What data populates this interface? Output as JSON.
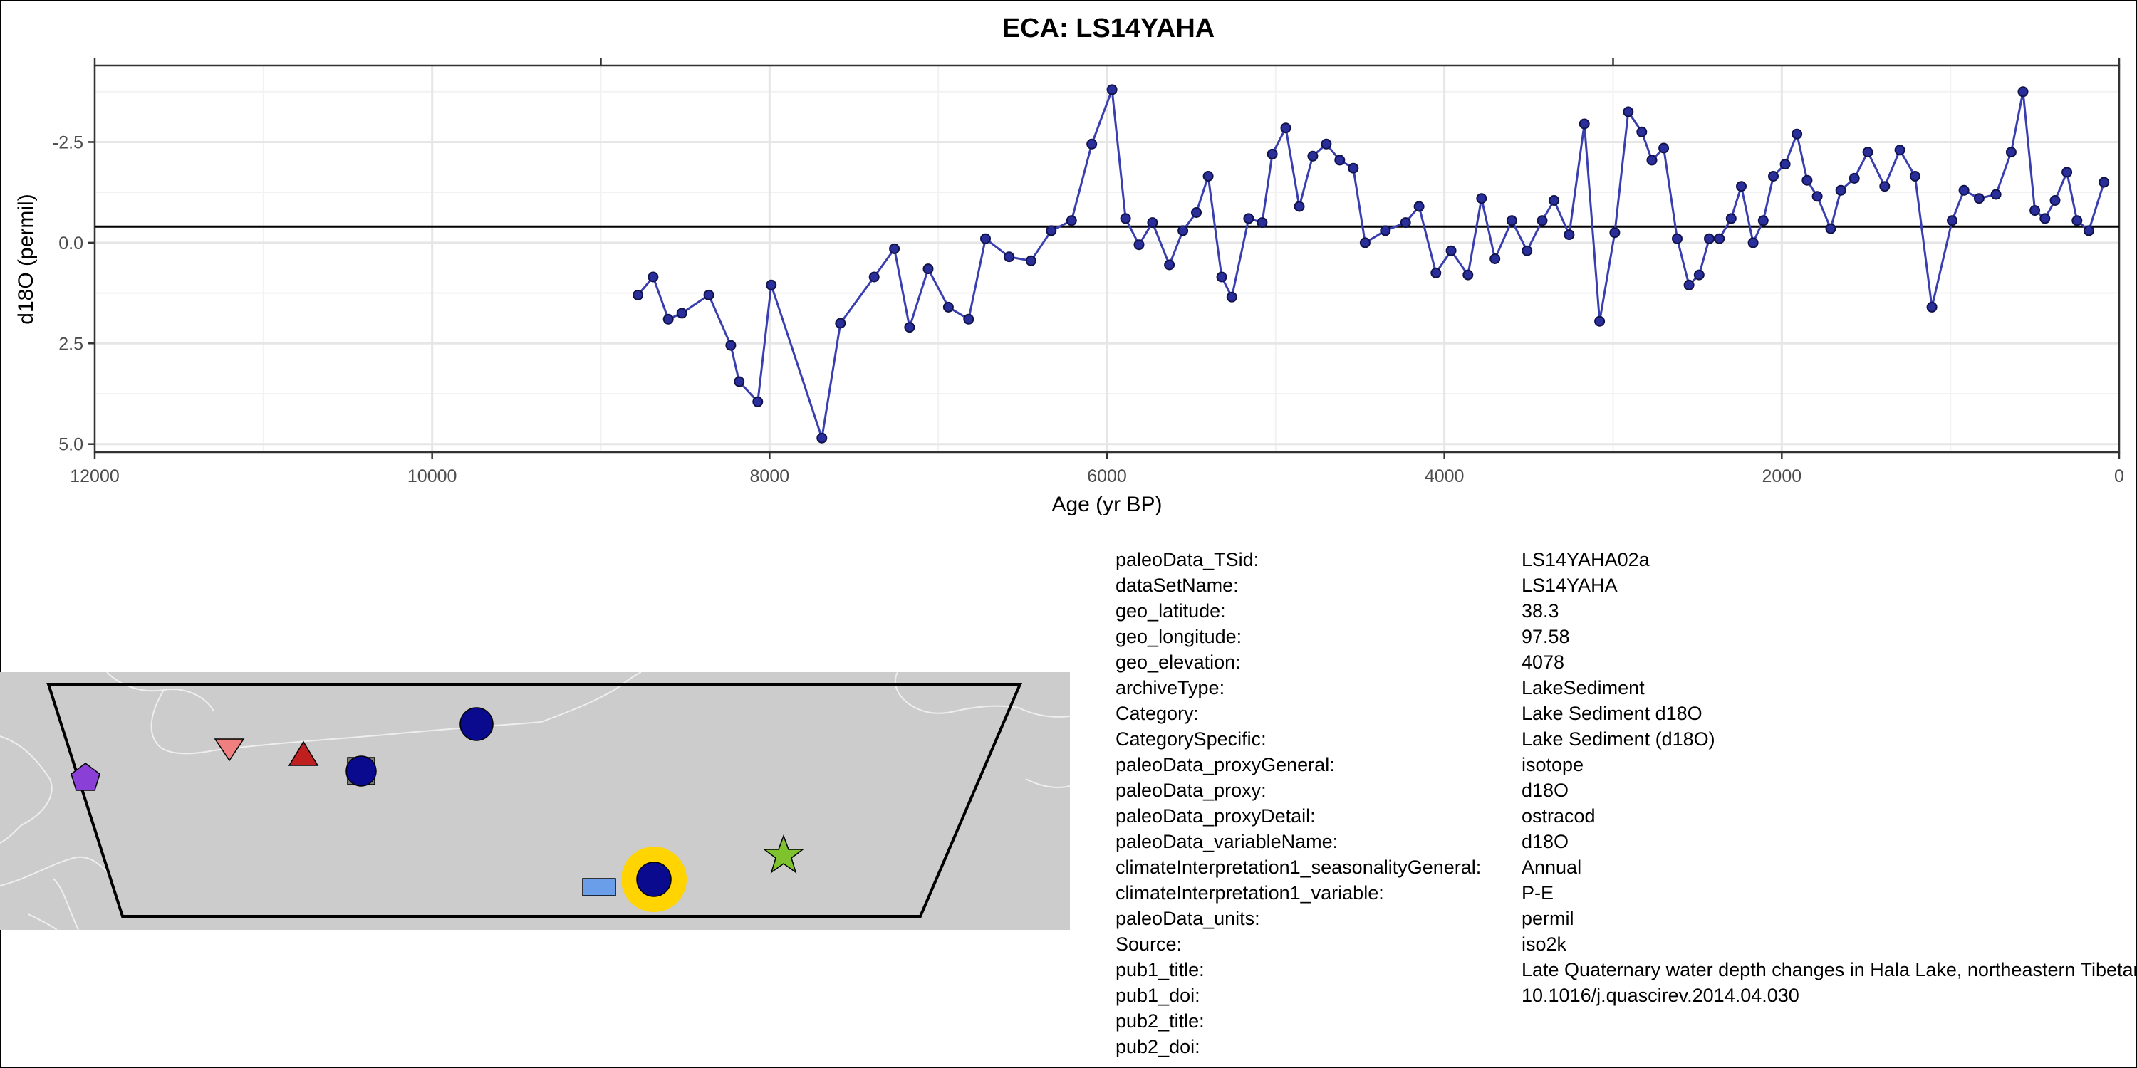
{
  "chart_data": {
    "type": "line",
    "title": "ECA: LS14YAHA",
    "xlabel": "Age (yr BP)",
    "ylabel": "d18O (permil)",
    "xlim": [
      12000,
      0
    ],
    "ylim": [
      5.2,
      -4.4
    ],
    "x_reversed": true,
    "y_reversed": true,
    "grid": true,
    "legend": "none",
    "x_ticks": [
      12000,
      10000,
      8000,
      6000,
      4000,
      2000,
      0
    ],
    "x_tick_labels": [
      "12000",
      "10000",
      "8000",
      "6000",
      "4000",
      "2000",
      "0"
    ],
    "y_ticks": [
      -2.5,
      0.0,
      2.5,
      5.0
    ],
    "y_tick_labels": [
      "-2.5",
      "0.0",
      "2.5",
      "5.0"
    ],
    "top_axis_ticks": [
      12000,
      9000,
      3000,
      0
    ],
    "reference_line_y": -0.4,
    "colors": {
      "line": "#3a3fb0",
      "point_fill": "#2a2e9a",
      "point_stroke": "#10124a"
    },
    "series": [
      {
        "x": [
          8780,
          8690,
          8600,
          8520,
          8360,
          8230,
          8180,
          8070,
          7990,
          7690,
          7580,
          7380,
          7260,
          7170,
          7060,
          6940,
          6820,
          6720,
          6580,
          6450,
          6330,
          6210,
          6090,
          5970,
          5890,
          5810,
          5730,
          5630,
          5550,
          5470,
          5400,
          5320,
          5260,
          5160,
          5080,
          5020,
          4940,
          4860,
          4780,
          4700,
          4620,
          4540,
          4470,
          4350,
          4230,
          4150,
          4050,
          3960,
          3860,
          3780,
          3700,
          3600,
          3510,
          3420,
          3350,
          3260,
          3170,
          3080,
          2990,
          2910,
          2830,
          2770,
          2700,
          2620,
          2550,
          2490,
          2430,
          2370,
          2300,
          2240,
          2170,
          2110,
          2050,
          1980,
          1910,
          1850,
          1790,
          1710,
          1650,
          1570,
          1490,
          1390,
          1300,
          1210,
          1110,
          990,
          920,
          830,
          730,
          640,
          570,
          500,
          440,
          380,
          310,
          250,
          180,
          90
        ],
        "y": [
          1.3,
          0.85,
          1.9,
          1.75,
          1.3,
          2.55,
          3.45,
          3.95,
          1.05,
          4.85,
          2.0,
          0.85,
          0.15,
          2.1,
          0.65,
          1.6,
          1.9,
          -0.1,
          0.35,
          0.45,
          -0.3,
          -0.55,
          -2.45,
          -3.8,
          -0.6,
          0.05,
          -0.5,
          0.55,
          -0.3,
          -0.75,
          -1.65,
          0.85,
          1.35,
          -0.6,
          -0.5,
          -2.2,
          -2.85,
          -0.9,
          -2.15,
          -2.45,
          -2.05,
          -1.85,
          0.0,
          -0.3,
          -0.5,
          -0.9,
          0.75,
          0.2,
          0.8,
          -1.1,
          0.4,
          -0.55,
          0.2,
          -0.55,
          -1.05,
          -0.2,
          -2.95,
          1.95,
          -0.25,
          -3.25,
          -2.75,
          -2.05,
          -2.35,
          -0.1,
          1.05,
          0.8,
          -0.1,
          -0.1,
          -0.6,
          -1.4,
          0.0,
          -0.55,
          -1.65,
          -1.95,
          -2.7,
          -1.55,
          -1.15,
          -0.35,
          -1.3,
          -1.6,
          -2.25,
          -1.4,
          -2.3,
          -1.65,
          1.6,
          -0.55,
          -1.3,
          -1.1,
          -1.2,
          -2.25,
          -3.75,
          -0.8,
          -0.6,
          -1.05,
          -1.75,
          -0.55,
          -0.3,
          -1.5
        ]
      }
    ]
  },
  "map": {
    "colors": {
      "land": "#cccccc",
      "border": "#eeeeee",
      "frame": "#000000"
    },
    "markers": [
      {
        "shape": "pentagon",
        "color": "#8a3fd6"
      },
      {
        "shape": "triangle-down",
        "color": "#f08080"
      },
      {
        "shape": "triangle-up",
        "color": "#c01f1f"
      },
      {
        "shape": "square",
        "color": "#7a7a7a"
      },
      {
        "shape": "circle",
        "color": "#0a0a8f"
      },
      {
        "shape": "circle",
        "color": "#0a0a8f"
      },
      {
        "shape": "star",
        "color": "#7ec32e"
      },
      {
        "shape": "rectangle",
        "color": "#6a9ee8"
      },
      {
        "shape": "diamond",
        "color": "#707070"
      },
      {
        "shape": "highlight-circle",
        "color": "#ffd400",
        "inner_color": "#0a0a8f"
      }
    ]
  },
  "metadata": [
    {
      "key": "paleoData_TSid:",
      "value": "LS14YAHA02a"
    },
    {
      "key": "dataSetName:",
      "value": "LS14YAHA"
    },
    {
      "key": "geo_latitude:",
      "value": "38.3"
    },
    {
      "key": "geo_longitude:",
      "value": "97.58"
    },
    {
      "key": "geo_elevation:",
      "value": "4078"
    },
    {
      "key": "archiveType:",
      "value": "LakeSediment"
    },
    {
      "key": "Category:",
      "value": "Lake Sediment d18O"
    },
    {
      "key": "CategorySpecific:",
      "value": "Lake Sediment (d18O)"
    },
    {
      "key": "paleoData_proxyGeneral:",
      "value": "isotope"
    },
    {
      "key": "paleoData_proxy:",
      "value": "d18O"
    },
    {
      "key": "paleoData_proxyDetail:",
      "value": "ostracod"
    },
    {
      "key": "paleoData_variableName:",
      "value": "d18O"
    },
    {
      "key": "climateInterpretation1_seasonalityGeneral:",
      "value": "Annual"
    },
    {
      "key": "climateInterpretation1_variable:",
      "value": "P-E"
    },
    {
      "key": "paleoData_units:",
      "value": "permil"
    },
    {
      "key": "Source:",
      "value": "iso2k"
    },
    {
      "key": "pub1_title:",
      "value": "Late Quaternary water depth changes in Hala Lake, northeastern Tibetan Plateau"
    },
    {
      "key": "pub1_doi:",
      "value": "10.1016/j.quascirev.2014.04.030"
    },
    {
      "key": "pub2_title:",
      "value": ""
    },
    {
      "key": "pub2_doi:",
      "value": ""
    }
  ]
}
